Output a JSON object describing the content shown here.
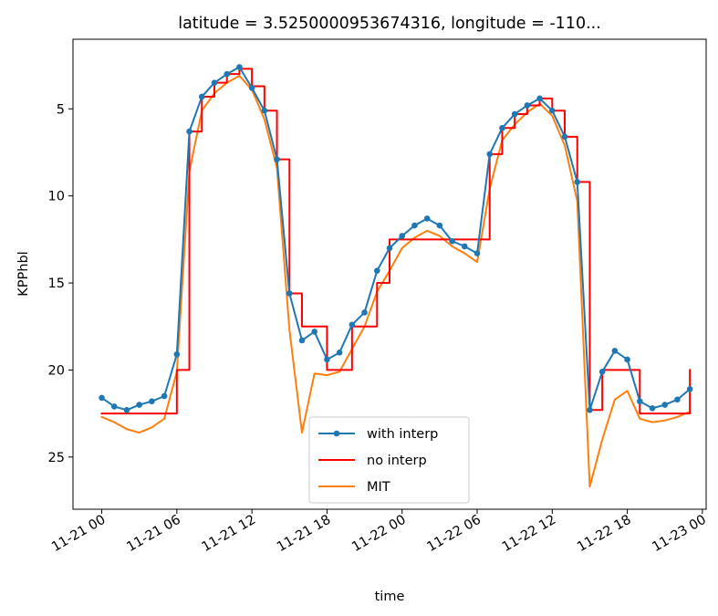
{
  "chart_data": {
    "type": "line",
    "title": "latitude = 3.5250000953674316, longitude = -110...",
    "xlabel": "time",
    "ylabel": "KPPhbl",
    "y_inverted": true,
    "ylim": [
      28.0,
      1.0
    ],
    "xlim_hours": [
      -2.3,
      48.3
    ],
    "x_ticks": [
      {
        "hour": 0,
        "label": "11-21 00"
      },
      {
        "hour": 6,
        "label": "11-21 06"
      },
      {
        "hour": 12,
        "label": "11-21 12"
      },
      {
        "hour": 18,
        "label": "11-21 18"
      },
      {
        "hour": 24,
        "label": "11-22 00"
      },
      {
        "hour": 30,
        "label": "11-22 06"
      },
      {
        "hour": 36,
        "label": "11-22 12"
      },
      {
        "hour": 42,
        "label": "11-22 18"
      },
      {
        "hour": 48,
        "label": "11-23 00"
      }
    ],
    "y_ticks": [
      {
        "value": 5,
        "label": "5"
      },
      {
        "value": 10,
        "label": "10"
      },
      {
        "value": 15,
        "label": "15"
      },
      {
        "value": 20,
        "label": "20"
      },
      {
        "value": 25,
        "label": "25"
      }
    ],
    "legend_position": "lower-center",
    "series": [
      {
        "name": "with interp",
        "color": "#1f77b4",
        "marker": "dot",
        "step": false,
        "x": [
          0,
          1,
          2,
          3,
          4,
          5,
          6,
          7,
          8,
          9,
          10,
          11,
          12,
          13,
          14,
          15,
          16,
          17,
          18,
          19,
          20,
          21,
          22,
          23,
          24,
          25,
          26,
          27,
          28,
          29,
          30,
          31,
          32,
          33,
          34,
          35,
          36,
          37,
          38,
          39,
          40,
          41,
          42,
          43,
          44,
          45,
          46,
          47
        ],
        "y": [
          21.6,
          22.1,
          22.3,
          22.0,
          21.8,
          21.5,
          19.1,
          6.3,
          4.3,
          3.5,
          3.0,
          2.6,
          3.8,
          5.1,
          7.9,
          15.6,
          18.3,
          17.8,
          19.4,
          19.0,
          17.4,
          16.7,
          14.3,
          13.0,
          12.3,
          11.7,
          11.3,
          11.7,
          12.6,
          12.9,
          13.3,
          7.6,
          6.1,
          5.3,
          4.8,
          4.4,
          5.1,
          6.6,
          9.2,
          22.3,
          20.1,
          18.9,
          19.4,
          21.8,
          22.2,
          22.0,
          21.7,
          21.1
        ]
      },
      {
        "name": "no interp",
        "color": "#ff0000",
        "marker": "none",
        "step": true,
        "x": [
          0,
          1,
          2,
          3,
          4,
          5,
          6,
          7,
          8,
          9,
          10,
          11,
          12,
          13,
          14,
          15,
          16,
          17,
          18,
          19,
          20,
          21,
          22,
          23,
          24,
          25,
          26,
          27,
          28,
          29,
          30,
          31,
          32,
          33,
          34,
          35,
          36,
          37,
          38,
          39,
          40,
          41,
          42,
          43,
          44,
          45,
          46,
          47
        ],
        "y": [
          22.5,
          22.5,
          22.5,
          22.5,
          22.5,
          22.5,
          20.0,
          6.3,
          4.3,
          3.5,
          3.0,
          2.7,
          3.7,
          5.1,
          7.9,
          15.6,
          17.5,
          17.5,
          20.0,
          20.0,
          17.5,
          17.5,
          15.0,
          12.5,
          12.5,
          12.5,
          12.5,
          12.5,
          12.5,
          12.5,
          12.5,
          7.6,
          6.1,
          5.3,
          4.8,
          4.4,
          5.1,
          6.6,
          9.2,
          22.3,
          20.0,
          20.0,
          20.0,
          22.5,
          22.5,
          22.5,
          22.5,
          20.0
        ]
      },
      {
        "name": "MIT",
        "color": "#ff7f0e",
        "marker": "none",
        "step": false,
        "x": [
          0,
          1,
          2,
          3,
          4,
          5,
          6,
          7,
          8,
          9,
          10,
          11,
          12,
          13,
          14,
          15,
          16,
          17,
          18,
          19,
          20,
          21,
          22,
          23,
          24,
          25,
          26,
          27,
          28,
          29,
          30,
          31,
          32,
          33,
          34,
          35,
          36,
          37,
          38,
          39,
          40,
          41,
          42,
          43,
          44,
          45,
          46,
          47
        ],
        "y": [
          22.7,
          23.0,
          23.4,
          23.6,
          23.3,
          22.8,
          20.1,
          8.6,
          5.1,
          4.1,
          3.5,
          3.1,
          3.9,
          5.6,
          8.4,
          17.7,
          23.6,
          20.2,
          20.3,
          20.1,
          18.8,
          17.5,
          15.5,
          14.3,
          13.0,
          12.4,
          12.0,
          12.3,
          12.9,
          13.3,
          13.8,
          9.6,
          6.8,
          5.9,
          5.2,
          4.7,
          5.4,
          7.1,
          10.3,
          26.7,
          24.0,
          21.7,
          21.2,
          22.8,
          23.0,
          22.9,
          22.7,
          22.4
        ]
      }
    ]
  }
}
